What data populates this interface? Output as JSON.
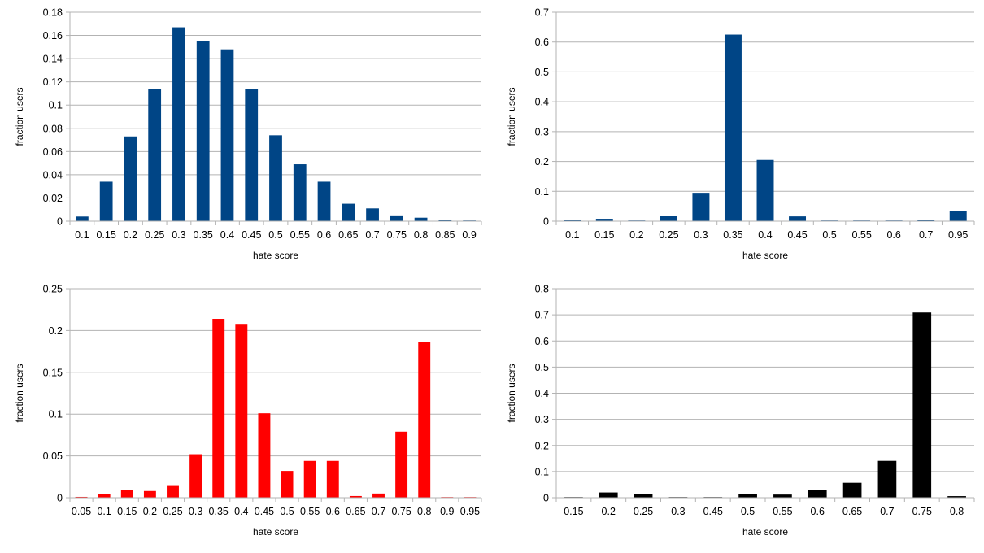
{
  "chart_data": [
    {
      "type": "bar",
      "xlabel": "hate score",
      "ylabel": "fraction users",
      "color": "#004586",
      "ylim": [
        0,
        0.18
      ],
      "yticks": [
        "0",
        "0.02",
        "0.04",
        "0.06",
        "0.08",
        "0.1",
        "0.12",
        "0.14",
        "0.16",
        "0.18"
      ],
      "grid": true,
      "categories": [
        "0.1",
        "0.15",
        "0.2",
        "0.25",
        "0.3",
        "0.35",
        "0.4",
        "0.45",
        "0.5",
        "0.55",
        "0.6",
        "0.65",
        "0.7",
        "0.75",
        "0.8",
        "0.85",
        "0.9"
      ],
      "values": [
        0.004,
        0.034,
        0.073,
        0.114,
        0.167,
        0.155,
        0.148,
        0.114,
        0.074,
        0.049,
        0.034,
        0.015,
        0.011,
        0.005,
        0.003,
        0.001,
        0.0005
      ]
    },
    {
      "type": "bar",
      "xlabel": "hate score",
      "ylabel": "fraction users",
      "color": "#004586",
      "ylim": [
        0,
        0.7
      ],
      "yticks": [
        "0",
        "0.1",
        "0.2",
        "0.3",
        "0.4",
        "0.5",
        "0.6",
        "0.7"
      ],
      "grid": true,
      "categories": [
        "0.1",
        "0.15",
        "0.2",
        "0.25",
        "0.3",
        "0.35",
        "0.4",
        "0.45",
        "0.5",
        "0.55",
        "0.6",
        "0.7",
        "0.95"
      ],
      "values": [
        0.003,
        0.008,
        0.002,
        0.018,
        0.095,
        0.625,
        0.205,
        0.016,
        0.002,
        0.001,
        0.001,
        0.003,
        0.033
      ]
    },
    {
      "type": "bar",
      "xlabel": "hate score",
      "ylabel": "fraction users",
      "color": "#ff0000",
      "ylim": [
        0,
        0.25
      ],
      "yticks": [
        "0",
        "0.05",
        "0.1",
        "0.15",
        "0.2",
        "0.25"
      ],
      "grid": true,
      "categories": [
        "0.05",
        "0.1",
        "0.15",
        "0.2",
        "0.25",
        "0.3",
        "0.35",
        "0.4",
        "0.45",
        "0.5",
        "0.55",
        "0.6",
        "0.65",
        "0.7",
        "0.75",
        "0.8",
        "0.9",
        "0.95"
      ],
      "values": [
        0.001,
        0.004,
        0.009,
        0.008,
        0.015,
        0.052,
        0.214,
        0.207,
        0.101,
        0.032,
        0.044,
        0.044,
        0.002,
        0.005,
        0.079,
        0.186,
        0.0005,
        0.0005
      ]
    },
    {
      "type": "bar",
      "xlabel": "hate score",
      "ylabel": "fraction users",
      "color": "#000000",
      "ylim": [
        0,
        0.8
      ],
      "yticks": [
        "0",
        "0.1",
        "0.2",
        "0.3",
        "0.4",
        "0.5",
        "0.6",
        "0.7",
        "0.8"
      ],
      "grid": true,
      "categories": [
        "0.15",
        "0.2",
        "0.25",
        "0.3",
        "0.45",
        "0.5",
        "0.55",
        "0.6",
        "0.65",
        "0.7",
        "0.75",
        "0.8"
      ],
      "values": [
        0.002,
        0.02,
        0.014,
        0.002,
        0.002,
        0.014,
        0.012,
        0.029,
        0.057,
        0.141,
        0.709,
        0.006
      ]
    }
  ]
}
